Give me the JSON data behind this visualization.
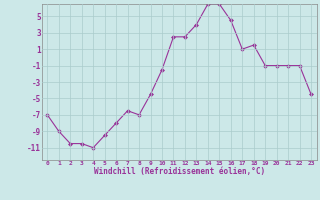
{
  "x": [
    0,
    1,
    2,
    3,
    4,
    5,
    6,
    7,
    8,
    9,
    10,
    11,
    12,
    13,
    14,
    15,
    16,
    17,
    18,
    19,
    20,
    21,
    22,
    23
  ],
  "y": [
    -7,
    -9,
    -10.5,
    -10.5,
    -11,
    -9.5,
    -8,
    -6.5,
    -7,
    -4.5,
    -1.5,
    2.5,
    2.5,
    4,
    6.5,
    6.5,
    4.5,
    1,
    1.5,
    -1,
    -1,
    -1,
    -1,
    -4.5
  ],
  "line_color": "#993399",
  "marker": "D",
  "marker_size": 2,
  "bg_color": "#cce8e8",
  "grid_color": "#aacccc",
  "xlabel": "Windchill (Refroidissement éolien,°C)",
  "xlabel_color": "#993399",
  "tick_color": "#993399",
  "yticks": [
    -11,
    -9,
    -7,
    -5,
    -3,
    -1,
    1,
    3,
    5
  ],
  "ylim": [
    -12.5,
    6.5
  ],
  "xlim": [
    -0.5,
    23.5
  ],
  "xticks": [
    0,
    1,
    2,
    3,
    4,
    5,
    6,
    7,
    8,
    9,
    10,
    11,
    12,
    13,
    14,
    15,
    16,
    17,
    18,
    19,
    20,
    21,
    22,
    23
  ]
}
